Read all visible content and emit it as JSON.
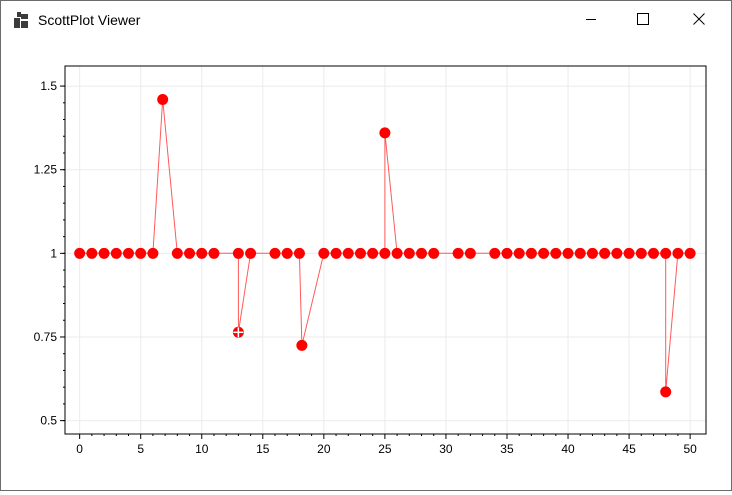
{
  "window": {
    "title": "ScottPlot Viewer",
    "icons": {
      "app": "app-window-icon",
      "minimize": "minimize-icon",
      "maximize": "maximize-icon",
      "close": "close-icon"
    }
  },
  "chart_data": {
    "type": "scatter",
    "title": "",
    "xlabel": "",
    "ylabel": "",
    "xlim": [
      -1.2,
      51.3
    ],
    "ylim": [
      0.46,
      1.56
    ],
    "x_ticks": [
      0,
      5,
      10,
      15,
      20,
      25,
      30,
      35,
      40,
      45,
      50
    ],
    "x_tick_labels": [
      "0",
      "5",
      "10",
      "15",
      "20",
      "25",
      "30",
      "35",
      "40",
      "45",
      "50"
    ],
    "y_ticks": [
      0.5,
      0.75,
      1.0,
      1.25,
      1.5
    ],
    "y_tick_labels": [
      "0.5",
      "0.75",
      "1",
      "1.25",
      "1.5"
    ],
    "grid": true,
    "legend": "none",
    "colors": {
      "series": "#ff0000",
      "line": "#ff5a5a",
      "grid": "#ebebeb"
    },
    "series": [
      {
        "x": [
          0,
          1,
          2,
          3,
          4,
          5,
          6,
          6.8,
          8,
          9,
          10,
          11,
          13,
          13,
          14,
          16,
          17,
          18,
          18.2,
          20,
          21,
          22,
          23,
          24,
          25,
          25,
          26,
          27,
          28,
          29,
          31,
          32,
          34,
          35,
          36,
          37,
          38,
          39,
          40,
          41,
          42,
          43,
          44,
          45,
          46,
          47,
          48,
          48,
          49,
          50
        ],
        "y": [
          1,
          1,
          1,
          1,
          1,
          1,
          1,
          1.46,
          1,
          1,
          1,
          1,
          1,
          0.764,
          1,
          1,
          1,
          1,
          0.725,
          1,
          1,
          1,
          1,
          1,
          1,
          1.36,
          1,
          1,
          1,
          1,
          1,
          1,
          1,
          1,
          1,
          1,
          1,
          1,
          1,
          1,
          1,
          1,
          1,
          1,
          1,
          1,
          1,
          0.586,
          1,
          1
        ]
      }
    ],
    "highlighted_point": {
      "x": 13,
      "y": 0.764
    }
  }
}
